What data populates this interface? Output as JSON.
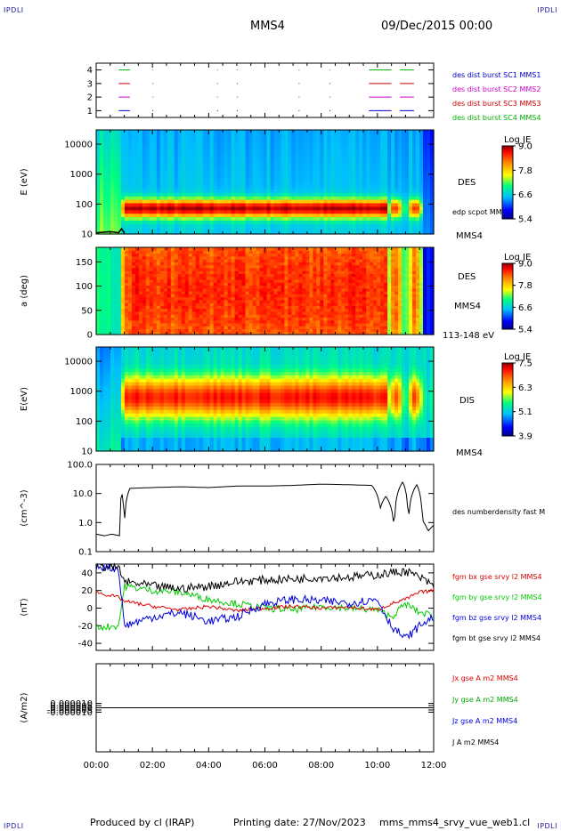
{
  "header": {
    "corner_label": "IPDLI",
    "spacecraft": "MMS4",
    "date_time": "09/Dec/2015 00:00"
  },
  "footer": {
    "produced_by": "Produced by cl (IRAP)",
    "printing_date": "Printing date: 27/Nov/2023",
    "file_name": "mms_mms4_srvy_vue_web1.cl"
  },
  "colors": {
    "mms1": "#0000cc",
    "mms2": "#cc00cc",
    "mms3": "#cc0000",
    "mms4": "#00b000",
    "bx": "#dd0000",
    "by": "#00cc00",
    "bz": "#0000dd",
    "bt": "#000000"
  },
  "chart_data": [
    {
      "id": "burst",
      "type": "scatter",
      "ylim": [
        0.5,
        4.5
      ],
      "xlim": [
        0,
        12
      ],
      "yticks": [
        "1",
        "2",
        "3",
        "4"
      ],
      "series": [
        {
          "name": "des dist burst SC1 MMS1",
          "level": 1,
          "segments": [
            [
              0.8,
              1.2
            ],
            [
              9.7,
              10.5
            ],
            [
              10.8,
              11.3
            ]
          ]
        },
        {
          "name": "des dist burst SC2 MMS2",
          "level": 2,
          "segments": [
            [
              0.8,
              1.2
            ],
            [
              9.7,
              10.5
            ],
            [
              10.8,
              11.3
            ]
          ]
        },
        {
          "name": "des dist burst SC3 MMS3",
          "level": 3,
          "segments": [
            [
              0.8,
              1.2
            ],
            [
              9.7,
              10.5
            ],
            [
              10.8,
              11.3
            ]
          ]
        },
        {
          "name": "des dist burst SC4 MMS4",
          "level": 4,
          "segments": [
            [
              0.8,
              1.2
            ],
            [
              9.7,
              10.5
            ],
            [
              10.8,
              11.3
            ]
          ]
        }
      ]
    },
    {
      "id": "des_energy",
      "type": "heatmap",
      "ylabel": "E (eV)",
      "yscale": "log",
      "ylim": [
        10,
        30000
      ],
      "yticks": [
        "10",
        "100",
        "1000",
        "10000"
      ],
      "right_labels": [
        "DES",
        "edp scpot MMS4",
        "MMS4"
      ],
      "colorbar": {
        "title": "Log JE",
        "ticks": [
          "9.0",
          "7.8",
          "6.6",
          "5.4"
        ]
      }
    },
    {
      "id": "des_pitch",
      "type": "heatmap",
      "ylabel": "a (deg)",
      "ylim": [
        0,
        180
      ],
      "yticks": [
        "0",
        "50",
        "100",
        "150"
      ],
      "right_labels": [
        "DES",
        "MMS4",
        "113-148 eV"
      ],
      "colorbar": {
        "title": "Log JE",
        "ticks": [
          "9.0",
          "7.8",
          "6.6",
          "5.4"
        ]
      }
    },
    {
      "id": "dis_energy",
      "type": "heatmap",
      "ylabel": "E(eV)",
      "yscale": "log",
      "ylim": [
        10,
        30000
      ],
      "yticks": [
        "10",
        "100",
        "1000",
        "10000"
      ],
      "right_labels": [
        "DIS",
        "MMS4"
      ],
      "colorbar": {
        "title": "Log JE",
        "ticks": [
          "7.5",
          "6.3",
          "5.1",
          "3.9"
        ]
      }
    },
    {
      "id": "density",
      "type": "line",
      "ylabel": "(cm^-3)",
      "yscale": "log",
      "ylim": [
        0.1,
        100
      ],
      "yticks": [
        "0.1",
        "1.0",
        "10.0",
        "100.0"
      ],
      "series": [
        {
          "name": "des numberdensity fast M",
          "x": [
            0,
            0.3,
            0.55,
            0.85,
            0.9,
            1.0,
            1.2,
            2.0,
            3.0,
            4.0,
            5.0,
            6.0,
            7.0,
            8.0,
            9.0,
            9.8,
            10.1,
            10.3,
            10.6,
            10.9,
            11.1,
            11.4,
            11.6,
            11.8,
            12.0
          ],
          "y": [
            0.4,
            0.35,
            0.4,
            0.35,
            12,
            0.3,
            15,
            16,
            17,
            16,
            18,
            18,
            19,
            21,
            20,
            19,
            3,
            8,
            0.3,
            25,
            0.5,
            20,
            1.2,
            0.5,
            0.8
          ]
        }
      ]
    },
    {
      "id": "magnetic",
      "type": "line",
      "ylabel": "(nT)",
      "ylim": [
        -48,
        50
      ],
      "yticks": [
        "-40",
        "-20",
        "0",
        "20",
        "40"
      ],
      "series": [
        {
          "name": "fgm bx gse srvy l2 MMS4",
          "x": [
            0,
            0.8,
            1.0,
            2.0,
            3.0,
            4.0,
            5.0,
            6.0,
            7.0,
            8.0,
            9.0,
            10.0,
            10.5,
            11.0,
            11.5,
            12.0
          ],
          "y": [
            18,
            12,
            8,
            2,
            -2,
            2,
            -3,
            0,
            2,
            0,
            1,
            -2,
            5,
            10,
            18,
            20
          ]
        },
        {
          "name": "fgm by gse srvy l2 MMS4",
          "x": [
            0,
            0.8,
            1.0,
            2.0,
            3.0,
            4.0,
            5.0,
            6.0,
            7.0,
            8.0,
            9.0,
            10.0,
            10.5,
            11.0,
            11.5,
            12.0
          ],
          "y": [
            -22,
            -20,
            25,
            20,
            18,
            10,
            5,
            0,
            -2,
            2,
            0,
            -2,
            -10,
            5,
            -5,
            -8
          ]
        },
        {
          "name": "fgm bz gse srvy l2 MMS4",
          "x": [
            0,
            0.8,
            1.0,
            2.0,
            3.0,
            4.0,
            5.0,
            6.0,
            7.0,
            8.0,
            9.0,
            10.0,
            10.5,
            11.0,
            11.5,
            12.0
          ],
          "y": [
            48,
            45,
            -20,
            -10,
            -5,
            -15,
            -10,
            5,
            10,
            8,
            6,
            10,
            -20,
            -35,
            -20,
            -10
          ]
        },
        {
          "name": "fgm bt gse srvy l2 MMS4",
          "x": [
            0,
            0.8,
            1.0,
            2.0,
            3.0,
            4.0,
            5.0,
            6.0,
            7.0,
            8.0,
            9.0,
            10.0,
            10.5,
            11.0,
            11.5,
            12.0
          ],
          "y": [
            48,
            46,
            30,
            25,
            22,
            25,
            30,
            32,
            33,
            35,
            35,
            38,
            40,
            42,
            35,
            25
          ]
        }
      ]
    },
    {
      "id": "current",
      "type": "line",
      "ylabel": "(A/m2)",
      "ylim": [
        -0.0001,
        0.0001
      ],
      "yticks": [
        "-0.000010",
        "-0.000005",
        "0.000000",
        "0.000005",
        "0.000010"
      ],
      "xlabel_ticks": [
        "00:00",
        "02:00",
        "04:00",
        "06:00",
        "08:00",
        "10:00",
        "12:00"
      ],
      "series": [
        {
          "name": "Jx gse A m2 MMS4",
          "x": [
            0,
            12
          ],
          "y": [
            0,
            0
          ]
        },
        {
          "name": "Jy gse A m2 MMS4",
          "x": [
            0,
            12
          ],
          "y": [
            0,
            0
          ]
        },
        {
          "name": "Jz gse A m2 MMS4",
          "x": [
            0,
            12
          ],
          "y": [
            0,
            0
          ]
        },
        {
          "name": "J A m2 MMS4",
          "x": [
            0,
            12
          ],
          "y": [
            0,
            0
          ]
        }
      ]
    }
  ]
}
